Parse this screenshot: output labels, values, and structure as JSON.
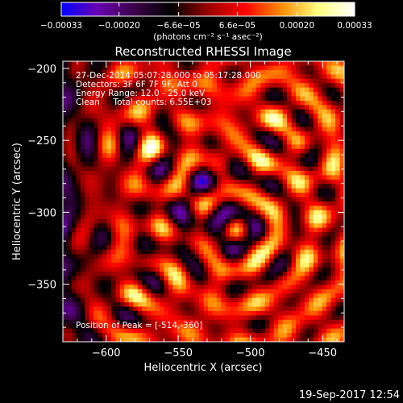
{
  "chart_data": {
    "type": "heatmap",
    "title": "Reconstructed RHESSI Image",
    "xlabel": "Heliocentric X (arcsec)",
    "ylabel": "Heliocentric Y (arcsec)",
    "xlim": [
      -630,
      -435
    ],
    "ylim": [
      -390,
      -195
    ],
    "x_ticks": [
      -600,
      -550,
      -500,
      -450
    ],
    "y_ticks": [
      -350,
      -300,
      -250,
      -200
    ],
    "x_tick_labels": [
      "−600",
      "−550",
      "−500",
      "−450"
    ],
    "y_tick_labels": [
      "−350",
      "−300",
      "−250",
      "−200"
    ],
    "colorbar": {
      "min": -0.00033,
      "max": 0.00033,
      "ticks": [
        -0.00033,
        -0.0002,
        -6.6e-05,
        6.6e-05,
        0.0002,
        0.00033
      ],
      "tick_labels": [
        "−0.00033",
        "−0.00020",
        "−6.6e−05",
        "6.6e−05",
        "0.00020",
        "0.00033"
      ],
      "unit_label": "(photons cm⁻² s⁻¹ asec⁻²)",
      "colors": [
        "#0000ff",
        "#6a00b0",
        "#3a0048",
        "#000000",
        "#9a0000",
        "#ff0000",
        "#ff8c00",
        "#ffff80",
        "#ffffff"
      ]
    },
    "annotations": [
      "27-Dec-2014 05:07:28.000 to 05:17:28.000",
      "Detectors: 3F 6F 7F 9F, Att 0",
      "Energy Range: 12.0 - 25.0 keV",
      "Clean     Total counts: 6.55E+03"
    ],
    "peak_label": "Position of Peak = [-514,-360]",
    "peak": [
      -514,
      -360
    ]
  },
  "footer": {
    "timestamp": "19-Sep-2017 12:54"
  }
}
